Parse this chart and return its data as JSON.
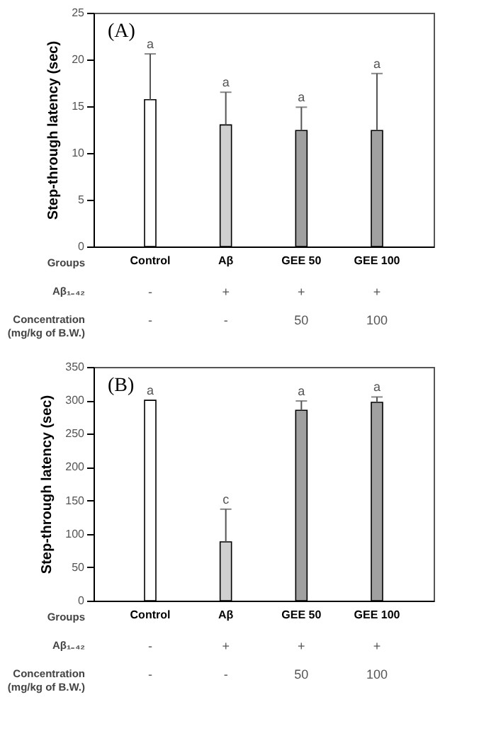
{
  "chart_data": [
    {
      "type": "bar",
      "title": "(A)",
      "xlabel": "Groups",
      "ylabel": "Step-through latency (sec)",
      "categories": [
        "Control",
        "Aβ",
        "GEE 50",
        "GEE 100"
      ],
      "values": [
        15.7,
        13.0,
        12.4,
        12.4
      ],
      "errors": [
        [
          15.7,
          20.6
        ],
        [
          13.0,
          16.5
        ],
        [
          12.4,
          14.9
        ],
        [
          12.4,
          18.5
        ]
      ],
      "colors": [
        "#ffffff",
        "#d0d0d0",
        "#a0a0a0",
        "#a0a0a0"
      ],
      "ylim": [
        0,
        25
      ],
      "yticks": [
        0,
        5,
        10,
        15,
        20,
        25
      ],
      "grid": false,
      "annotations": [
        {
          "text": "a",
          "x": "Control",
          "y": 20.6
        },
        {
          "text": "a",
          "x": "Aβ",
          "y": 16.5
        },
        {
          "text": "a",
          "x": "GEE 50",
          "y": 14.9
        },
        {
          "text": "a",
          "x": "GEE 100",
          "y": 18.5
        },
        "Aβ₁₋₄₂",
        "-",
        "+",
        "+",
        "+",
        "Concentration\n(mg/kg of B.W.)",
        "-",
        "-",
        "50",
        "100"
      ]
    },
    {
      "type": "bar",
      "title": "(B)",
      "xlabel": "Groups",
      "ylabel": "Step-through latency (sec)",
      "categories": [
        "Control",
        "Aβ",
        "GEE 50",
        "GEE 100"
      ],
      "values": [
        300,
        88,
        285,
        297
      ],
      "errors": [
        null,
        [
          88,
          137
        ],
        [
          285,
          299
        ],
        [
          297,
          305
        ]
      ],
      "colors": [
        "#ffffff",
        "#d0d0d0",
        "#a0a0a0",
        "#a0a0a0"
      ],
      "ylim": [
        0,
        350
      ],
      "yticks": [
        0,
        50,
        100,
        150,
        200,
        250,
        300,
        350
      ],
      "grid": false,
      "annotations": [
        {
          "text": "a",
          "x": "Control",
          "y": 300
        },
        {
          "text": "c",
          "x": "Aβ",
          "y": 137
        },
        {
          "text": "a",
          "x": "GEE 50",
          "y": 299
        },
        {
          "text": "a",
          "x": "GEE 100",
          "y": 305
        },
        "Aβ₁₋₄₂",
        "-",
        "+",
        "+",
        "+",
        "Concentration\n(mg/kg of B.W.)",
        "-",
        "-",
        "50",
        "100"
      ]
    }
  ]
}
